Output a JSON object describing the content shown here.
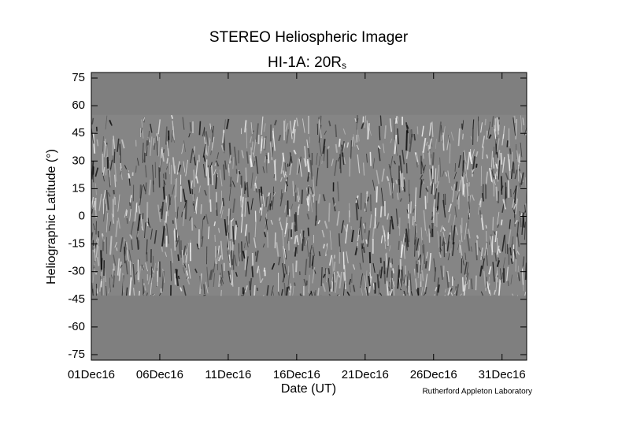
{
  "chart_data": {
    "type": "jmap",
    "title": "STEREO Heliospheric Imager",
    "subtitle": {
      "text": "HI-1A: 20R",
      "subscript": "s"
    },
    "x_label": "Date (UT)",
    "y_label": "Heliographic Latitude (°)",
    "credit": "Rutherford Appleton Laboratory",
    "xlim": [
      1,
      32.8
    ],
    "xticks": [
      {
        "value": 1,
        "label": "01Dec16"
      },
      {
        "value": 6,
        "label": "06Dec16"
      },
      {
        "value": 11,
        "label": "11Dec16"
      },
      {
        "value": 16,
        "label": "16Dec16"
      },
      {
        "value": 21,
        "label": "21Dec16"
      },
      {
        "value": 26,
        "label": "26Dec16"
      },
      {
        "value": 31,
        "label": "31Dec16"
      }
    ],
    "ylim": [
      -78,
      78
    ],
    "yticks": [
      75,
      60,
      45,
      30,
      15,
      0,
      -15,
      -30,
      -45,
      -60,
      -75
    ],
    "coverage_ylim": [
      -43,
      55
    ],
    "background_color": "#7f7f7f"
  }
}
